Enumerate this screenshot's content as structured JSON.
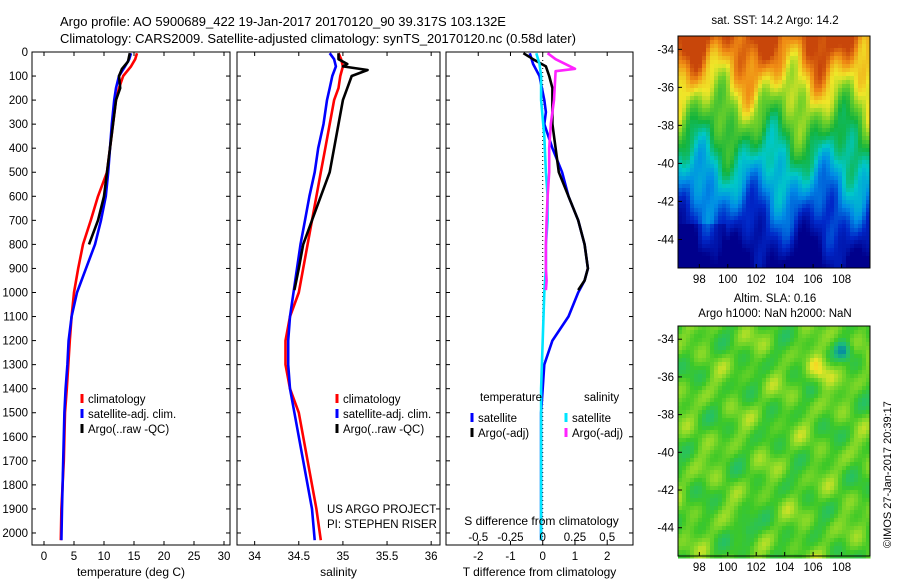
{
  "header": {
    "line1": "Argo profile: AO 5900689_422 19-Jan-2017 20170120_90 39.317S 103.132E",
    "line2": "Climatology: CARS2009. Satellite-adjusted climatology: synTS_20170120.nc (0.58d later)"
  },
  "colors": {
    "climatology": "#ff0000",
    "satellite": "#0000ff",
    "argo": "#000000",
    "satellite_s": "#00e5ff",
    "argo_s": "#ff22ff"
  },
  "ylim": [
    0,
    2050
  ],
  "yticks": [
    0,
    100,
    200,
    300,
    400,
    500,
    600,
    700,
    800,
    900,
    1000,
    1100,
    1200,
    1300,
    1400,
    1500,
    1600,
    1700,
    1800,
    1900,
    2000
  ],
  "chart_data": [
    {
      "type": "line",
      "id": "temperature",
      "xlabel": "temperature (deg C)",
      "xlim": [
        -2,
        31
      ],
      "xticks": [
        0,
        5,
        10,
        15,
        20,
        25,
        30
      ],
      "legend": [
        "climatology",
        "satellite-adj. clim.",
        "Argo(..raw -QC)"
      ],
      "series": [
        {
          "name": "climatology",
          "color": "#ff0000",
          "x": [
            15.5,
            15.2,
            14.5,
            13.2,
            12.5,
            12.0,
            11.5,
            11.0,
            10.5,
            9.0,
            7.8,
            6.5,
            5.7,
            5.0,
            4.6,
            4.3,
            3.8,
            3.5,
            3.3,
            3.1,
            2.9,
            2.8
          ],
          "y": [
            5,
            30,
            60,
            100,
            150,
            200,
            300,
            400,
            500,
            600,
            700,
            800,
            900,
            1000,
            1100,
            1200,
            1400,
            1500,
            1700,
            1800,
            1900,
            2030
          ]
        },
        {
          "name": "satellite-adj. clim.",
          "color": "#0000ff",
          "x": [
            14.5,
            14.2,
            13.5,
            12.5,
            12.0,
            11.7,
            11.3,
            11.0,
            10.7,
            10.3,
            9.5,
            8.5,
            7.0,
            5.5,
            4.6,
            4.1,
            3.9,
            3.6,
            3.4,
            3.2,
            3.0,
            2.9
          ],
          "y": [
            5,
            30,
            60,
            100,
            150,
            200,
            300,
            400,
            500,
            600,
            700,
            800,
            900,
            1000,
            1100,
            1200,
            1300,
            1400,
            1500,
            1700,
            1900,
            2030
          ]
        },
        {
          "name": "Argo(..raw -QC)",
          "color": "#000000",
          "x": [
            14.3,
            14.0,
            13.0,
            12.5,
            12.7,
            12.0,
            11.5,
            11.0,
            10.5,
            10.0,
            9.0,
            7.5
          ],
          "y": [
            5,
            40,
            70,
            100,
            150,
            200,
            300,
            400,
            500,
            600,
            700,
            800
          ]
        }
      ],
      "annotation": []
    },
    {
      "type": "line",
      "id": "salinity",
      "xlabel": "salinity",
      "xlim": [
        33.8,
        36.1
      ],
      "xticks": [
        34,
        34.5,
        35,
        35.5,
        36
      ],
      "legend": [
        "climatology",
        "satellite-adj. clim.",
        "Argo(..raw -QC)"
      ],
      "series": [
        {
          "name": "climatology",
          "color": "#ff0000",
          "x": [
            34.95,
            34.98,
            35.0,
            34.97,
            34.95,
            34.9,
            34.85,
            34.8,
            34.75,
            34.7,
            34.65,
            34.6,
            34.55,
            34.5,
            34.4,
            34.35,
            34.35,
            34.4,
            34.5,
            34.6,
            34.7,
            34.75
          ],
          "y": [
            5,
            30,
            60,
            100,
            150,
            200,
            300,
            400,
            500,
            600,
            700,
            800,
            900,
            1000,
            1100,
            1200,
            1300,
            1400,
            1500,
            1700,
            1900,
            2030
          ]
        },
        {
          "name": "satellite-adj. clim.",
          "color": "#0000ff",
          "x": [
            34.85,
            34.9,
            34.92,
            34.88,
            34.85,
            34.82,
            34.78,
            34.72,
            34.68,
            34.62,
            34.57,
            34.52,
            34.48,
            34.44,
            34.4,
            34.38,
            34.38,
            34.4,
            34.45,
            34.55,
            34.65,
            34.68
          ],
          "y": [
            5,
            30,
            60,
            100,
            150,
            200,
            300,
            400,
            500,
            600,
            700,
            800,
            900,
            1000,
            1100,
            1200,
            1300,
            1400,
            1500,
            1700,
            1900,
            2030
          ]
        },
        {
          "name": "Argo(..raw -QC)",
          "color": "#000000",
          "x": [
            34.95,
            34.95,
            35.05,
            35.0,
            35.28,
            35.1,
            35.05,
            35.0,
            34.95,
            34.9,
            34.85,
            34.75,
            34.65,
            34.55,
            34.5,
            34.45
          ],
          "y": [
            5,
            30,
            50,
            60,
            75,
            100,
            150,
            200,
            300,
            400,
            500,
            600,
            700,
            800,
            900,
            990
          ]
        }
      ],
      "annotation": [
        "US ARGO PROJECT",
        "PI: STEPHEN RISER"
      ]
    },
    {
      "type": "line",
      "id": "difference",
      "xlabel": "T difference from climatology",
      "xlabel_top": "S difference from climatology",
      "xlim": [
        -3.0,
        2.8
      ],
      "xticks": [
        -2,
        -1,
        0,
        1,
        2
      ],
      "xticks_top_labels": [
        "-0.5",
        "-0.25",
        "0",
        "0.25",
        "0.5"
      ],
      "legend_titles": [
        "temperature",
        "salinity"
      ],
      "legend": [
        "satellite",
        "Argo(-adj)",
        "satellite",
        "Argo(-adj)"
      ],
      "series": [
        {
          "name": "satellite",
          "color": "#0000ff",
          "x": [
            -0.4,
            -0.3,
            -0.1,
            0.05,
            0.1,
            0.05,
            0.3,
            0.6,
            0.8,
            1.1,
            1.3,
            1.4,
            1.3,
            1.1,
            0.8,
            0.3,
            0.05,
            -0.05,
            -0.05,
            -0.05
          ],
          "y": [
            5,
            50,
            100,
            200,
            250,
            300,
            400,
            500,
            600,
            700,
            800,
            900,
            950,
            1000,
            1100,
            1200,
            1300,
            1500,
            1800,
            2030
          ]
        },
        {
          "name": "Argo(-adj)",
          "color": "#000000",
          "x": [
            -0.6,
            -0.3,
            0.1,
            0.2,
            0.3,
            0.3,
            0.5,
            0.8,
            1.1,
            1.3,
            1.4,
            1.3,
            1.1
          ],
          "y": [
            5,
            30,
            60,
            100,
            150,
            300,
            500,
            600,
            700,
            800,
            900,
            950,
            990
          ]
        },
        {
          "name": "satellite",
          "color": "#00e5ff",
          "x": [
            -0.2,
            -0.1,
            -0.05,
            -0.05,
            0.05,
            0.1,
            0.15,
            0.15,
            0.1,
            0.1,
            0.05,
            0.0,
            -0.05,
            -0.05,
            -0.05,
            -0.05
          ],
          "y": [
            5,
            50,
            100,
            200,
            350,
            500,
            600,
            700,
            800,
            900,
            1000,
            1200,
            1400,
            1600,
            1800,
            2030
          ]
        },
        {
          "name": "Argo(-adj)",
          "color": "#ff22ff",
          "x": [
            0.15,
            0.4,
            1.0,
            0.4,
            0.35,
            0.25,
            0.2,
            0.2,
            0.15,
            0.12,
            0.1,
            0.1,
            0.12,
            0.1
          ],
          "y": [
            5,
            30,
            70,
            80,
            200,
            300,
            400,
            500,
            600,
            700,
            800,
            900,
            950,
            990
          ]
        }
      ]
    }
  ],
  "maps": [
    {
      "id": "sst",
      "title": "sat. SST: 14.2 Argo: 14.2",
      "xticks": [
        98,
        100,
        102,
        104,
        106,
        108
      ],
      "yticks": [
        -34,
        -36,
        -38,
        -40,
        -42,
        -44
      ],
      "xlim": [
        96.5,
        110
      ],
      "ylim": [
        -45.5,
        -33.3
      ]
    },
    {
      "id": "sla",
      "title_line1": "Altim. SLA: 0.16",
      "title_line2": "Argo h1000: NaN h2000: NaN",
      "xticks": [
        98,
        100,
        102,
        104,
        106,
        108
      ],
      "yticks": [
        -34,
        -36,
        -38,
        -40,
        -42,
        -44
      ],
      "xlim": [
        96.5,
        110
      ],
      "ylim": [
        -45.5,
        -33.3
      ]
    }
  ],
  "credit": "©IMOS 27-Jan-2017 20:39:17"
}
